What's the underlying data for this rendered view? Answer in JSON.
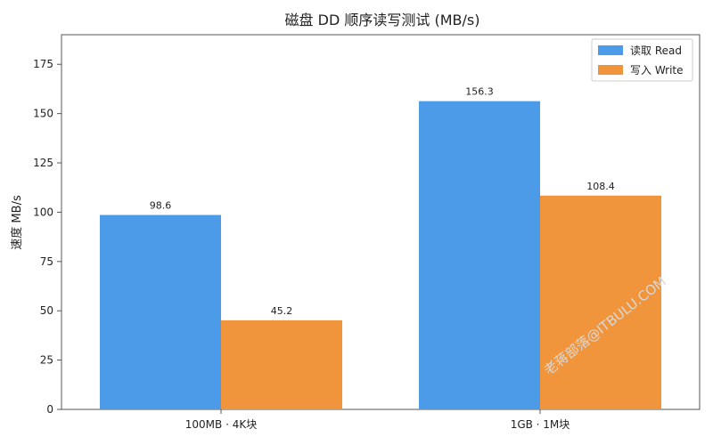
{
  "chart_data": {
    "type": "bar",
    "title": "磁盘 DD 顺序读写测试 (MB/s)",
    "xlabel": "",
    "ylabel": "速度 MB/s",
    "categories": [
      "100MB · 4K块",
      "1GB · 1M块"
    ],
    "series": [
      {
        "name": "读取 Read",
        "values": [
          98.6,
          156.3
        ],
        "value_labels": [
          "98.6",
          "156.3"
        ],
        "color": "#4c9be8"
      },
      {
        "name": "写入 Write",
        "values": [
          45.2,
          108.4
        ],
        "value_labels": [
          "45.2",
          "108.4"
        ],
        "color": "#f0953b"
      }
    ],
    "ylim": [
      0,
      190
    ],
    "yticks": [
      0,
      25,
      50,
      75,
      100,
      125,
      150,
      175
    ],
    "grid": false,
    "legend": "top-right"
  },
  "watermark": "老蒋部落@ITBULU.COM"
}
